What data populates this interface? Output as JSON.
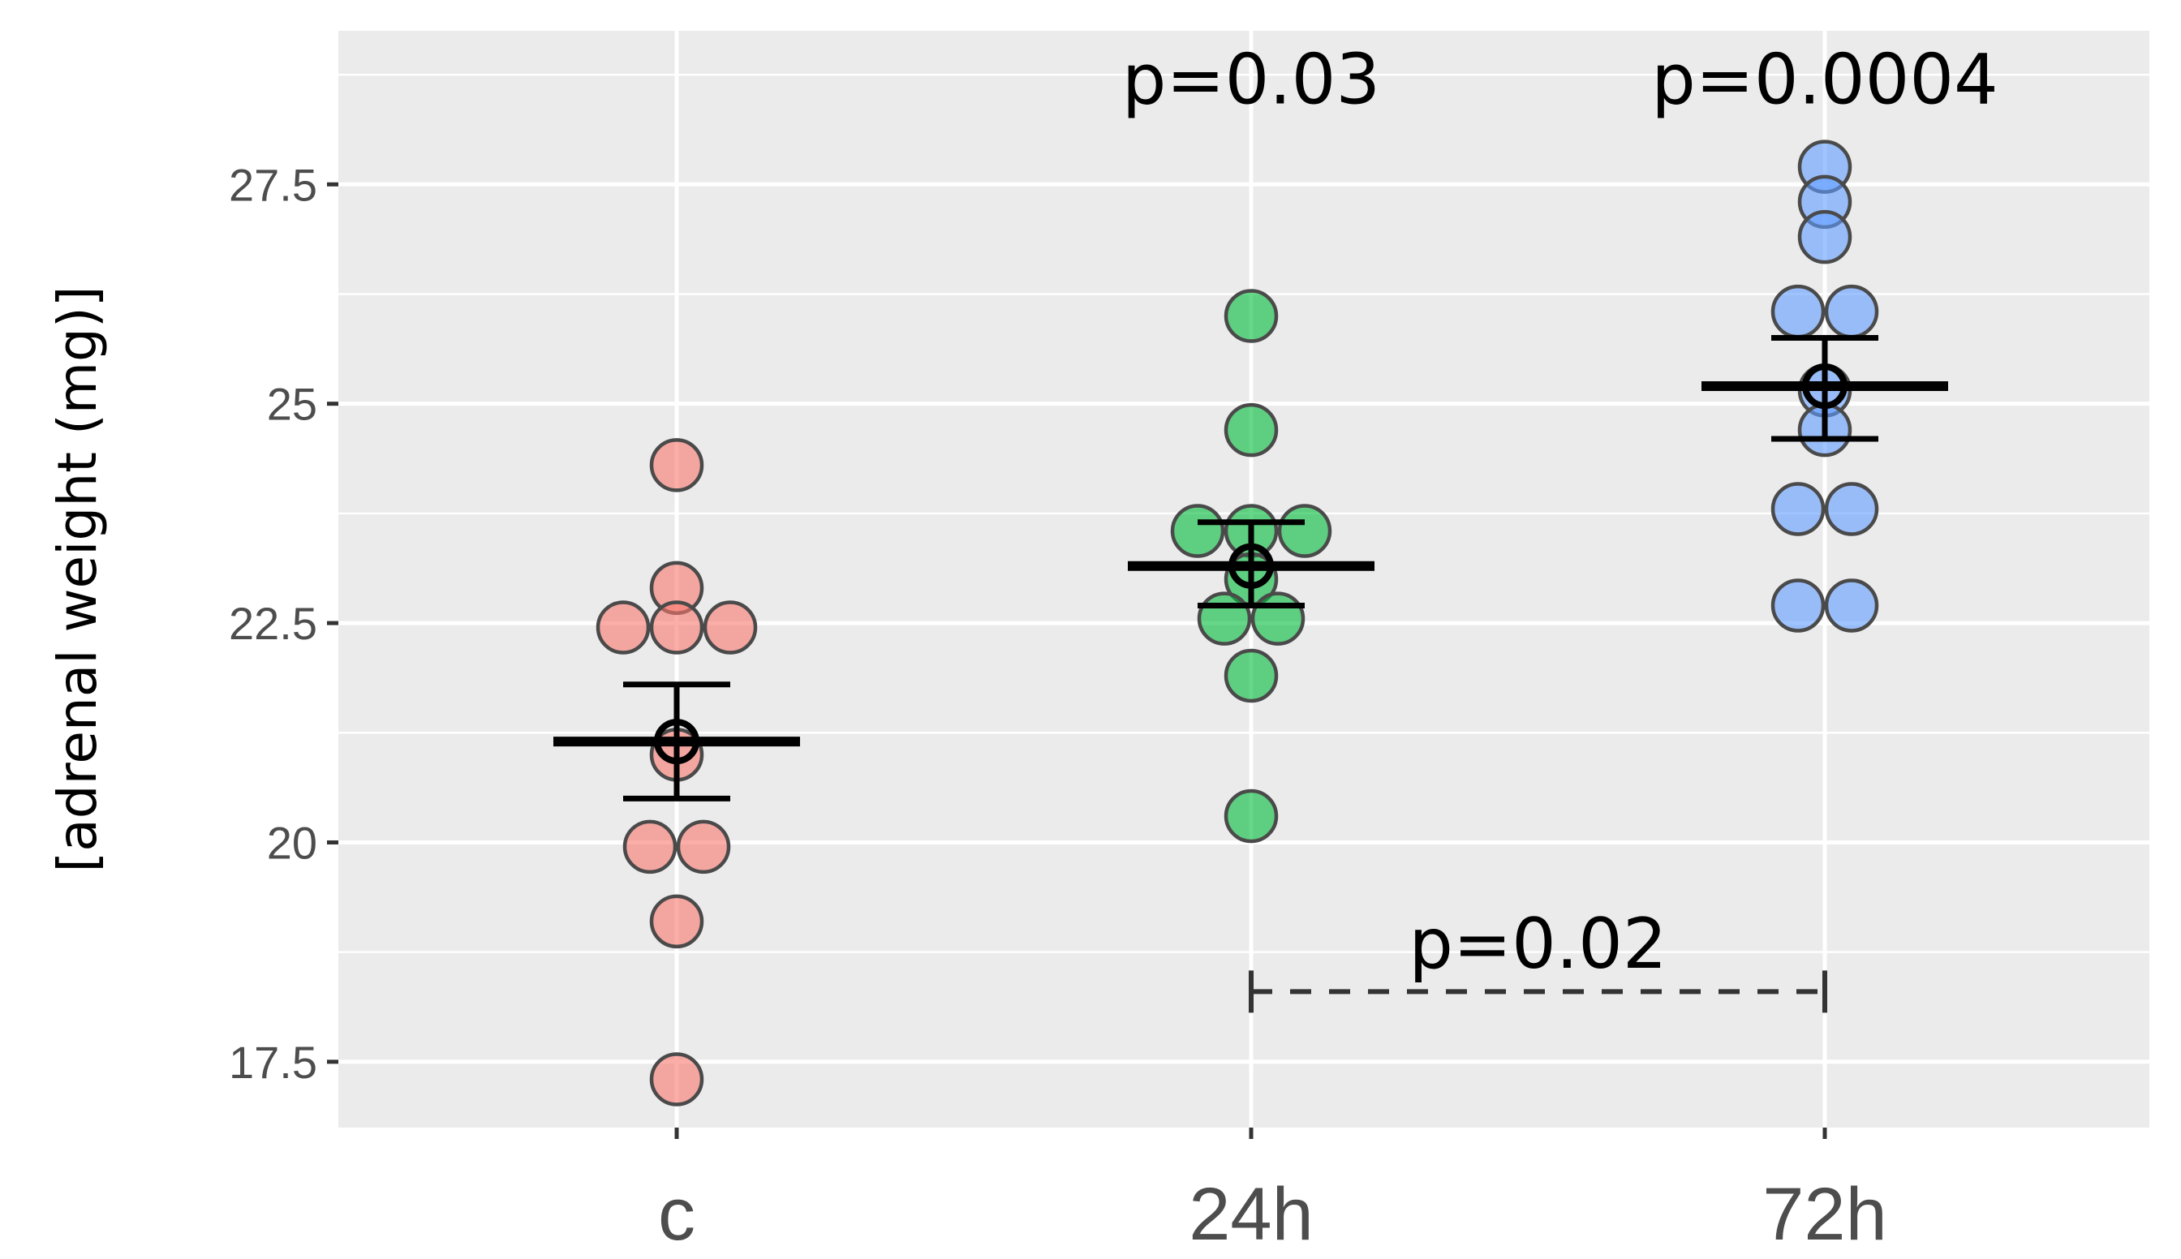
{
  "chart_data": {
    "type": "scatter",
    "title": "",
    "xlabel": "",
    "ylabel": "[adrenal weight (mg)]",
    "ylim": [
      16.75,
      29.25
    ],
    "yticks": [
      17.5,
      20,
      22.5,
      25,
      27.5
    ],
    "ytick_labels": [
      "17.5",
      "20",
      "22.5",
      "25",
      "27.5"
    ],
    "categories": [
      "c",
      "24h",
      "72h"
    ],
    "grid": true,
    "legend": "none",
    "series": [
      {
        "name": "c",
        "color": "#F8766D",
        "points": [
          {
            "offset": 0,
            "value": 24.3
          },
          {
            "offset": 0,
            "value": 22.9
          },
          {
            "offset": -1,
            "value": 22.45
          },
          {
            "offset": 0,
            "value": 22.45
          },
          {
            "offset": 1,
            "value": 22.45
          },
          {
            "offset": 0,
            "value": 21.0
          },
          {
            "offset": -0.5,
            "value": 19.95
          },
          {
            "offset": 0.5,
            "value": 19.95
          },
          {
            "offset": 0,
            "value": 19.1
          },
          {
            "offset": 0,
            "value": 17.3
          }
        ],
        "mean": 21.15,
        "se_low": 20.5,
        "se_high": 21.8
      },
      {
        "name": "24h",
        "color": "#00BA38",
        "points": [
          {
            "offset": 0,
            "value": 26.0
          },
          {
            "offset": 0,
            "value": 24.7
          },
          {
            "offset": -1,
            "value": 23.55
          },
          {
            "offset": 0,
            "value": 23.55
          },
          {
            "offset": 1,
            "value": 23.55
          },
          {
            "offset": 0,
            "value": 23.0
          },
          {
            "offset": -0.5,
            "value": 22.55
          },
          {
            "offset": 0.5,
            "value": 22.55
          },
          {
            "offset": 0,
            "value": 21.9
          },
          {
            "offset": 0,
            "value": 20.3
          }
        ],
        "mean": 23.15,
        "se_low": 22.7,
        "se_high": 23.65
      },
      {
        "name": "72h",
        "color": "#619CFF",
        "points": [
          {
            "offset": 0,
            "value": 27.7
          },
          {
            "offset": 0,
            "value": 27.3
          },
          {
            "offset": 0,
            "value": 26.9
          },
          {
            "offset": -0.5,
            "value": 26.05
          },
          {
            "offset": 0.5,
            "value": 26.05
          },
          {
            "offset": 0,
            "value": 25.15
          },
          {
            "offset": 0,
            "value": 24.7
          },
          {
            "offset": -0.5,
            "value": 23.8
          },
          {
            "offset": 0.5,
            "value": 23.8
          },
          {
            "offset": -0.5,
            "value": 22.7
          },
          {
            "offset": 0.5,
            "value": 22.7
          }
        ],
        "mean": 25.2,
        "se_low": 24.6,
        "se_high": 25.75
      }
    ],
    "annotations": [
      {
        "text": "p=0.03",
        "category": "24h",
        "value": 28.7
      },
      {
        "text": "p=0.0004",
        "category": "72h",
        "value": 28.7
      },
      {
        "text": "p=0.02",
        "from": "24h",
        "to": "72h",
        "value": 18.3,
        "label_value": 18.85
      }
    ]
  }
}
